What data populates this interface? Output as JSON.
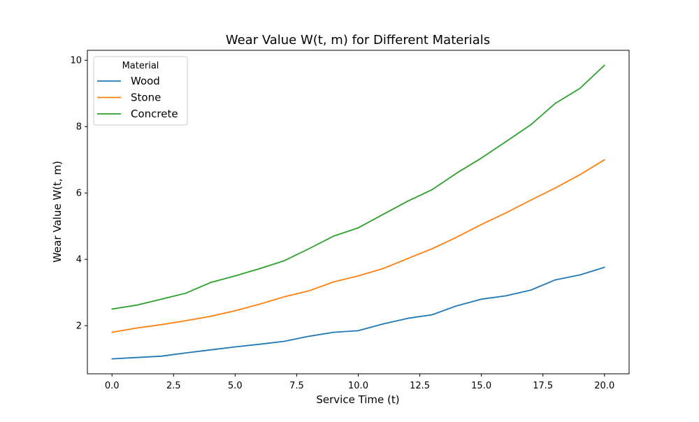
{
  "chart_data": {
    "type": "line",
    "title": "Wear Value W(t, m) for Different Materials",
    "xlabel": "Service Time (t)",
    "ylabel": "Wear Value W(t, m)",
    "xlim": [
      -1.0,
      21.0
    ],
    "ylim": [
      0.55,
      10.3
    ],
    "xticks": [
      0.0,
      2.5,
      5.0,
      7.5,
      10.0,
      12.5,
      15.0,
      17.5,
      20.0
    ],
    "xtick_labels": [
      "0.0",
      "2.5",
      "5.0",
      "7.5",
      "10.0",
      "12.5",
      "15.0",
      "17.5",
      "20.0"
    ],
    "yticks": [
      2,
      4,
      6,
      8,
      10
    ],
    "ytick_labels": [
      "2",
      "4",
      "6",
      "8",
      "10"
    ],
    "grid": false,
    "legend": {
      "title": "Material",
      "position": "top-left"
    },
    "series": [
      {
        "name": "Wood",
        "color": "#1f77b4",
        "x": [
          0,
          1,
          2,
          3,
          4,
          5,
          6,
          7,
          8,
          9,
          10,
          11,
          12,
          13,
          14,
          15,
          16,
          17,
          18,
          19,
          20
        ],
        "y": [
          1.0,
          1.04,
          1.08,
          1.18,
          1.27,
          1.36,
          1.44,
          1.53,
          1.68,
          1.8,
          1.85,
          2.05,
          2.22,
          2.33,
          2.6,
          2.8,
          2.9,
          3.07,
          3.38,
          3.53,
          3.76
        ]
      },
      {
        "name": "Stone",
        "color": "#ff7f0e",
        "x": [
          0,
          1,
          2,
          3,
          4,
          5,
          6,
          7,
          8,
          9,
          10,
          11,
          12,
          13,
          14,
          15,
          16,
          17,
          18,
          19,
          20
        ],
        "y": [
          1.8,
          1.93,
          2.03,
          2.15,
          2.28,
          2.45,
          2.65,
          2.87,
          3.05,
          3.32,
          3.5,
          3.72,
          4.02,
          4.32,
          4.67,
          5.05,
          5.4,
          5.78,
          6.15,
          6.55,
          7.0
        ]
      },
      {
        "name": "Concrete",
        "color": "#2ca02c",
        "x": [
          0,
          1,
          2,
          3,
          4,
          5,
          6,
          7,
          8,
          9,
          10,
          11,
          12,
          13,
          14,
          15,
          16,
          17,
          18,
          19,
          20
        ],
        "y": [
          2.5,
          2.62,
          2.8,
          2.98,
          3.3,
          3.5,
          3.72,
          3.96,
          4.32,
          4.7,
          4.95,
          5.35,
          5.75,
          6.1,
          6.6,
          7.05,
          7.55,
          8.05,
          8.7,
          9.15,
          9.85
        ]
      }
    ]
  }
}
